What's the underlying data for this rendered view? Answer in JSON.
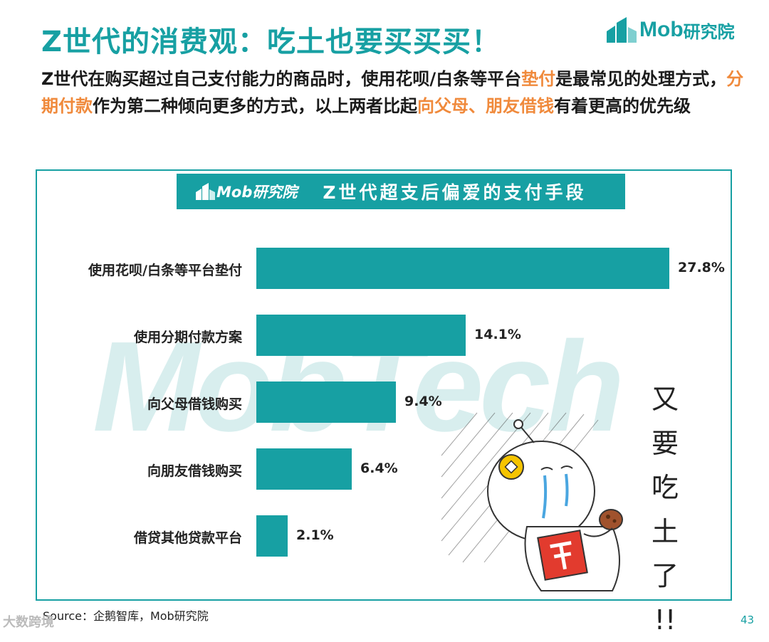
{
  "header": {
    "title": "Z世代的消费观：吃土也要买买买！",
    "logo_text_latin": "Mob",
    "logo_text_cn": "研究院"
  },
  "subtitle": {
    "p1": "Z世代在购买超过自己支付能力的商品时，使用花呗/白条等平台",
    "h1": "垫付",
    "p2": "是最常见的处理方式，",
    "h2": "分期付款",
    "p3": "作为第二种倾向更多的方式，以上两者比起",
    "h3": "向父母、朋友借钱",
    "p4": "有着更高的优先级"
  },
  "banner": {
    "logo": "Mob研究院",
    "title": "Z世代超支后偏爱的支付手段"
  },
  "watermark": "MobTech",
  "illustration": {
    "text": [
      "又",
      "要",
      "吃",
      "土",
      "了",
      "!!"
    ]
  },
  "chart_data": {
    "type": "bar",
    "orientation": "horizontal",
    "title": "Z世代超支后偏爱的支付手段",
    "categories": [
      "使用花呗/白条等平台垫付",
      "使用分期付款方案",
      "向父母借钱购买",
      "向朋友借钱购买",
      "借贷其他贷款平台"
    ],
    "values": [
      27.8,
      14.1,
      9.4,
      6.4,
      2.1
    ],
    "value_labels": [
      "27.8%",
      "14.1%",
      "9.4%",
      "6.4%",
      "2.1%"
    ],
    "unit": "%",
    "color": "#17a0a3",
    "xlim": [
      0,
      27.8
    ],
    "grid": false
  },
  "source": "Source：企鹅智库，Mob研究院",
  "page_number": "43",
  "corner_watermark": "大数跨境",
  "colors": {
    "accent": "#17a0a3",
    "highlight": "#f08a3c"
  }
}
